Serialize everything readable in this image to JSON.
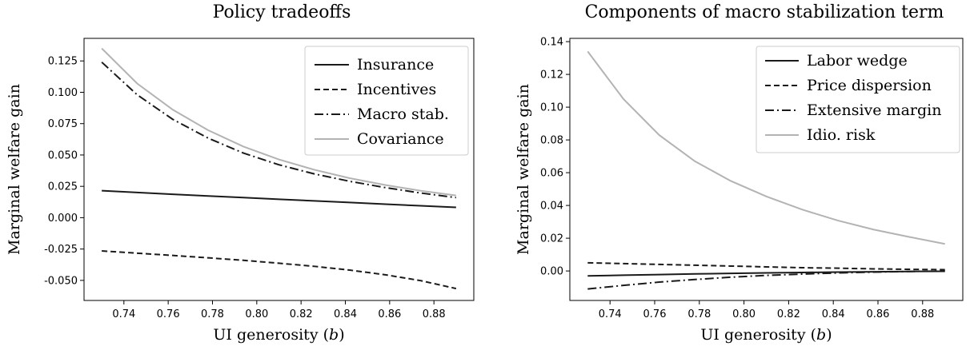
{
  "chart_data": [
    {
      "type": "line",
      "title": "Policy tradeoffs",
      "xlabel": "UI generosity (b)",
      "xlabel_main": "UI generosity (",
      "xlabel_var": "b",
      "xlabel_end": ")",
      "ylabel": "Marginal welfare gain",
      "xlim": [
        0.722,
        0.898
      ],
      "ylim": [
        -0.066,
        0.143
      ],
      "xticks": [
        "0.74",
        "0.76",
        "0.78",
        "0.80",
        "0.82",
        "0.84",
        "0.86",
        "0.88"
      ],
      "yticks": [
        "-0.050",
        "-0.025",
        "0.000",
        "0.025",
        "0.050",
        "0.075",
        "0.100",
        "0.125"
      ],
      "grid": false,
      "legend_position": "top-right",
      "x": [
        0.73,
        0.746,
        0.762,
        0.778,
        0.794,
        0.81,
        0.826,
        0.842,
        0.858,
        0.874,
        0.89
      ],
      "series": [
        {
          "name": "Insurance",
          "color": "#1a1a1a",
          "dash": "solid",
          "values": [
            0.0215,
            0.0201,
            0.0187,
            0.0173,
            0.016,
            0.0147,
            0.0134,
            0.0121,
            0.0108,
            0.0095,
            0.0082
          ]
        },
        {
          "name": "Incentives",
          "color": "#1a1a1a",
          "dash": "dashed",
          "values": [
            -0.0265,
            -0.0283,
            -0.0301,
            -0.032,
            -0.034,
            -0.0363,
            -0.0388,
            -0.0418,
            -0.0455,
            -0.0502,
            -0.0565
          ]
        },
        {
          "name": "Macro stab.",
          "color": "#1a1a1a",
          "dash": "dashdot",
          "values": [
            0.124,
            0.098,
            0.0785,
            0.0635,
            0.0515,
            0.0422,
            0.0349,
            0.029,
            0.024,
            0.0197,
            0.016
          ]
        },
        {
          "name": "Covariance",
          "color": "#b3b3b3",
          "dash": "solid",
          "values": [
            0.135,
            0.107,
            0.0862,
            0.0698,
            0.0567,
            0.0464,
            0.0382,
            0.0315,
            0.0261,
            0.0215,
            0.0177
          ]
        }
      ]
    },
    {
      "type": "line",
      "title": "Components of macro stabilization term",
      "xlabel": "UI generosity (b)",
      "xlabel_main": "UI generosity (",
      "xlabel_var": "b",
      "xlabel_end": ")",
      "ylabel": "Marginal welfare gain",
      "xlim": [
        0.722,
        0.898
      ],
      "ylim": [
        -0.018,
        0.142
      ],
      "xticks": [
        "0.74",
        "0.76",
        "0.78",
        "0.80",
        "0.82",
        "0.84",
        "0.86",
        "0.88"
      ],
      "yticks": [
        "0.00",
        "0.02",
        "0.04",
        "0.06",
        "0.08",
        "0.10",
        "0.12",
        "0.14"
      ],
      "grid": false,
      "legend_position": "top-right",
      "x": [
        0.73,
        0.746,
        0.762,
        0.778,
        0.794,
        0.81,
        0.826,
        0.842,
        0.858,
        0.874,
        0.89
      ],
      "series": [
        {
          "name": "Labor wedge",
          "color": "#1a1a1a",
          "dash": "solid",
          "values": [
            -0.003,
            -0.0026,
            -0.0022,
            -0.0018,
            -0.0015,
            -0.0012,
            -0.0009,
            -0.0007,
            -0.0005,
            -0.0003,
            -0.0002
          ]
        },
        {
          "name": "Price dispersion",
          "color": "#1a1a1a",
          "dash": "dashed",
          "values": [
            0.005,
            0.0045,
            0.004,
            0.0035,
            0.003,
            0.0025,
            0.002,
            0.0017,
            0.0013,
            0.001,
            0.0008
          ]
        },
        {
          "name": "Extensive margin",
          "color": "#1a1a1a",
          "dash": "dashdot",
          "values": [
            -0.011,
            -0.0088,
            -0.0068,
            -0.0052,
            -0.0038,
            -0.0027,
            -0.0019,
            -0.0012,
            -0.0007,
            -0.0003,
            0.0
          ]
        },
        {
          "name": "Idio. risk",
          "color": "#b3b3b3",
          "dash": "solid",
          "values": [
            0.134,
            0.105,
            0.083,
            0.067,
            0.055,
            0.0455,
            0.0375,
            0.0308,
            0.0253,
            0.0208,
            0.0165
          ]
        }
      ]
    }
  ]
}
